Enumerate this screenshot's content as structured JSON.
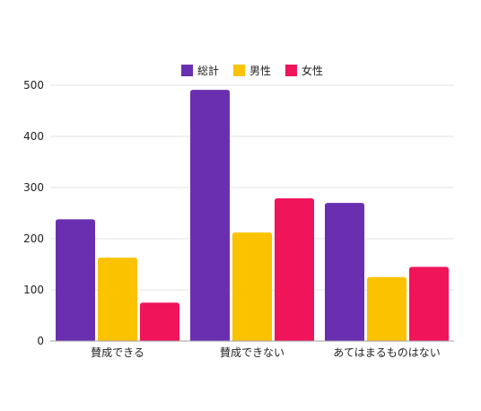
{
  "chart_data": {
    "type": "bar",
    "categories": [
      "賛成できる",
      "賛成できない",
      "あてはまるものはない"
    ],
    "series": [
      {
        "name": "総計",
        "values": [
          238,
          491,
          270
        ],
        "color": "#6a2fb0"
      },
      {
        "name": "男性",
        "values": [
          163,
          212,
          125
        ],
        "color": "#fbc200"
      },
      {
        "name": "女性",
        "values": [
          75,
          279,
          145
        ],
        "color": "#f0145a"
      }
    ],
    "ylim": [
      0,
      500
    ],
    "yticks": [
      0,
      100,
      200,
      300,
      400,
      500
    ],
    "grid": true,
    "legend": "top-center"
  }
}
